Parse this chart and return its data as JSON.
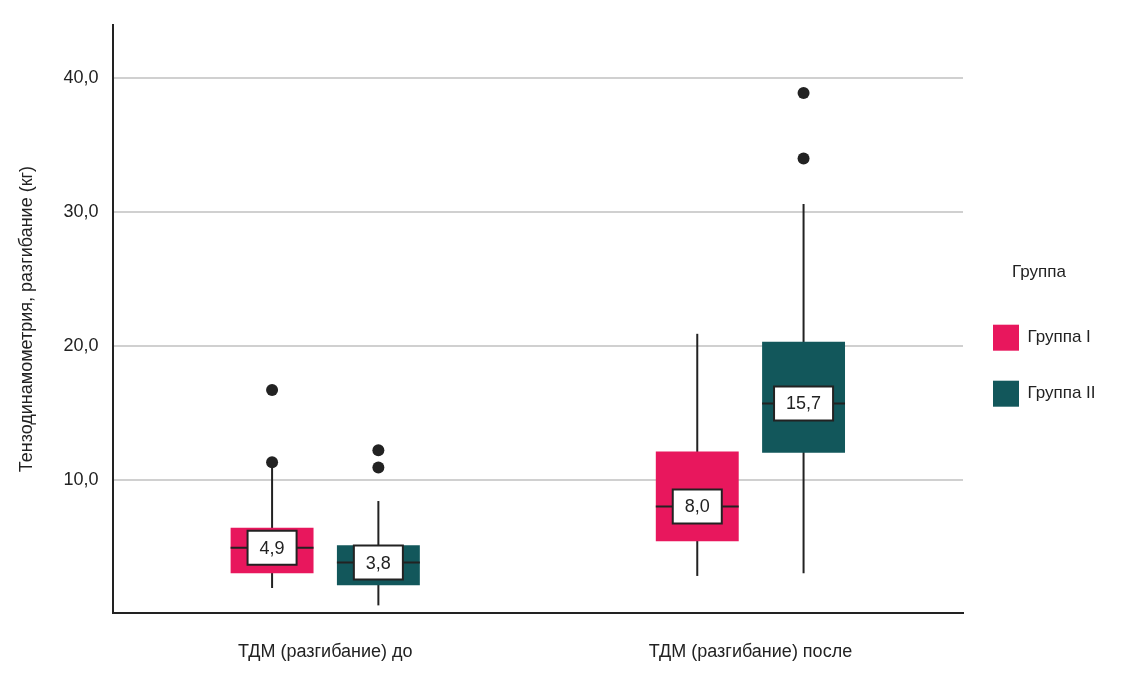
{
  "chart_data": {
    "type": "box",
    "ylabel": "Тензодинамометрия, разгибание (кг)",
    "legend_title": "Группа",
    "legend": "right",
    "grid": "y",
    "marker": "circle",
    "categories": [
      "ТДМ (разгибание) до",
      "ТДМ (разгибание) после"
    ],
    "ylim": [
      0,
      44
    ],
    "yticks": [
      {
        "value": 10,
        "label": "10,0"
      },
      {
        "value": 20,
        "label": "20,0"
      },
      {
        "value": 30,
        "label": "30,0"
      },
      {
        "value": 40,
        "label": "40,0"
      }
    ],
    "series": [
      {
        "name": "Группа I",
        "color": "#e8175d",
        "value_labels": [
          "4,9",
          "8,0"
        ],
        "boxes": [
          {
            "low": 1.9,
            "q1": 3.0,
            "median": 4.9,
            "q3": 6.4,
            "high": 10.9,
            "outliers": [
              11.3,
              16.7
            ]
          },
          {
            "low": 2.8,
            "q1": 5.4,
            "median": 8.0,
            "q3": 12.1,
            "high": 20.9
          }
        ]
      },
      {
        "name": "Группа II",
        "color": "#12575b",
        "value_labels": [
          "3,8",
          "15,7"
        ],
        "boxes": [
          {
            "low": 0.6,
            "q1": 2.1,
            "median": 3.8,
            "q3": 5.1,
            "high": 8.4,
            "outliers": [
              10.9,
              12.2
            ]
          },
          {
            "low": 3.0,
            "q1": 12.0,
            "median": 15.7,
            "q3": 20.3,
            "high": 30.6,
            "outliers": [
              34.0,
              38.9
            ]
          }
        ]
      }
    ]
  }
}
